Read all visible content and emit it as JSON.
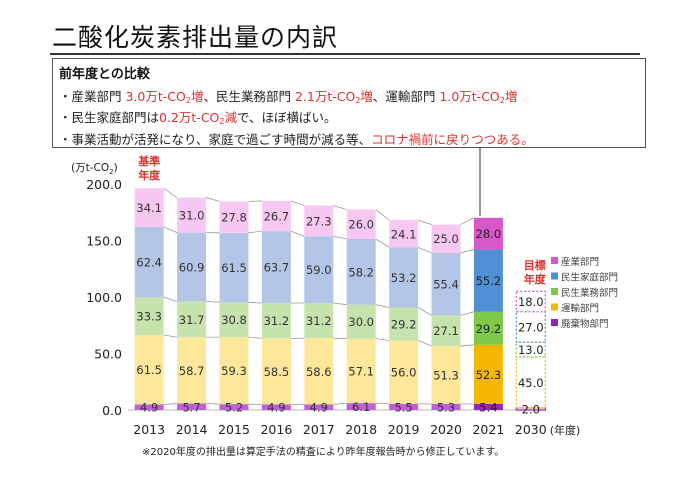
{
  "title": "二酸化炭素排出量の内訳",
  "comparison": {
    "heading": "前年度との比較",
    "bullet": "・",
    "line1": {
      "seg1": "産業部門 ",
      "seg1_val": "3.0万t-CO",
      "seg1_sub": "2",
      "seg1_tail": "増",
      "seg2": "、民生業務部門 ",
      "seg2_val": "2.1万t-CO",
      "seg2_sub": "2",
      "seg2_tail": "増",
      "seg3": "、運輸部門 ",
      "seg3_val": "1.0万t-CO",
      "seg3_sub": "2",
      "seg3_tail": "増"
    },
    "line2": {
      "seg1": "民生家庭部門は",
      "seg1_val": "0.2万t-CO",
      "seg1_sub": "2",
      "seg1_tail": "減",
      "seg2": "で、ほぼ横ばい。"
    },
    "line3": {
      "seg1": "事業活動が活発になり、家庭で過ごす時間が減る等、",
      "seg2": "コロナ禍前に戻りつつある。"
    }
  },
  "note": "※2020年度の排出量は算定手法の精査により昨年度報告時から修正しています。",
  "labels": {
    "base_year_line1": "基準",
    "base_year_line2": "年度",
    "target_line1": "目標",
    "target_line2": "年度"
  },
  "chart_data": {
    "type": "bar",
    "stacked": true,
    "unit_label": "(万t-CO",
    "unit_sub": "2",
    "unit_close": ")",
    "xlabel": "(年度)",
    "ylim": [
      0,
      200
    ],
    "yticks": [
      "0.0",
      "50.0",
      "100.0",
      "150.0",
      "200.0"
    ],
    "categories": [
      "2013",
      "2014",
      "2015",
      "2016",
      "2017",
      "2018",
      "2019",
      "2020",
      "2021",
      "2030"
    ],
    "series": [
      {
        "name": "廃棄物部門",
        "color": "#c060d8",
        "color2021": "#9b1fc0",
        "values": [
          4.9,
          5.7,
          5.2,
          4.9,
          4.9,
          6.1,
          5.5,
          5.3,
          5.4,
          2.0
        ]
      },
      {
        "name": "運輸部門",
        "color": "#fde79a",
        "color2021": "#f5b800",
        "values": [
          61.5,
          58.7,
          59.3,
          58.5,
          58.6,
          57.1,
          56.0,
          51.3,
          52.3,
          45.0
        ]
      },
      {
        "name": "民生業務部門",
        "color": "#c7e3ad",
        "color2021": "#7ec84a",
        "values": [
          33.3,
          31.7,
          30.8,
          31.2,
          31.2,
          30.0,
          29.2,
          27.1,
          29.2,
          13.0
        ]
      },
      {
        "name": "民生家庭部門",
        "color": "#b4c6e7",
        "color2021": "#4f8fd4",
        "values": [
          62.4,
          60.9,
          61.5,
          63.7,
          59.0,
          58.2,
          53.2,
          55.4,
          55.2,
          27.0
        ]
      },
      {
        "name": "産業部門",
        "color": "#f9c8f2",
        "color2021": "#d957c9",
        "values": [
          34.1,
          31.0,
          27.8,
          26.7,
          27.3,
          26.0,
          24.1,
          25.0,
          28.0,
          18.0
        ]
      }
    ],
    "value_labels": [
      [
        "4.9",
        "5.7",
        "5.2",
        "4.9",
        "4.9",
        "6.1",
        "5.5",
        "5.3",
        "5.4",
        "2.0"
      ],
      [
        "61.5",
        "58.7",
        "59.3",
        "58.5",
        "58.6",
        "57.1",
        "56.0",
        "51.3",
        "52.3",
        "45.0"
      ],
      [
        "33.3",
        "31.7",
        "30.8",
        "31.2",
        "31.2",
        "30.0",
        "29.2",
        "27.1",
        "29.2",
        "13.0"
      ],
      [
        "62.4",
        "60.9",
        "61.5",
        "63.7",
        "59.0",
        "58.2",
        "53.2",
        "55.4",
        "55.2",
        "27.0"
      ],
      [
        "34.1",
        "31.0",
        "27.8",
        "26.7",
        "27.3",
        "26.0",
        "24.1",
        "25.0",
        "28.0",
        "18.0"
      ]
    ],
    "legend": [
      "産業部門",
      "民生家庭部門",
      "民生業務部門",
      "運輸部門",
      "廃棄物部門"
    ],
    "legend_placement": "right"
  }
}
